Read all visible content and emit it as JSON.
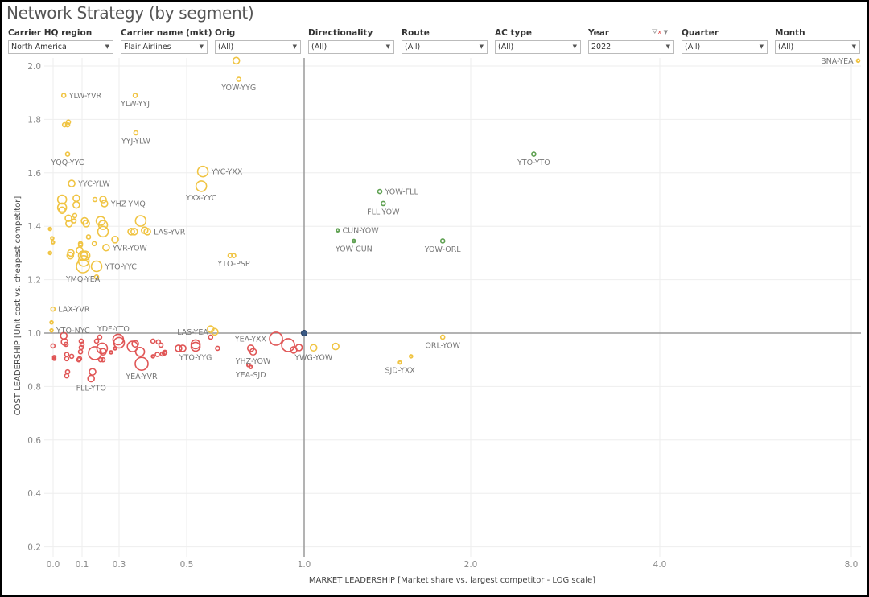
{
  "title": "Network Strategy (by segment)",
  "filters": [
    {
      "label": "Carrier HQ region",
      "value": "North America"
    },
    {
      "label": "Carrier name (mkt)",
      "value": "Flair Airlines"
    },
    {
      "label": "Orig",
      "value": "(All)"
    },
    {
      "label": "Directionality",
      "value": "(All)"
    },
    {
      "label": "Route",
      "value": "(All)"
    },
    {
      "label": "AC type",
      "value": "(All)"
    },
    {
      "label": "Year",
      "value": "2022"
    },
    {
      "label": "Quarter",
      "value": "(All)"
    },
    {
      "label": "Month",
      "value": "(All)"
    }
  ],
  "icons": {
    "clear_filter": "filter-clear-icon",
    "dropdown": "caret-down-icon"
  },
  "chart_data": {
    "type": "scatter",
    "xlabel": "MARKET LEADERSHIP [Market share vs. largest competitor - LOG scale]",
    "ylabel": "COST LEADERSHIP [Unit cost vs. cheapest competitor]",
    "x_scale": "log",
    "x_ticks": [
      {
        "value": 0.03125,
        "label": "0.0"
      },
      {
        "value": 0.125,
        "label": "0.1"
      },
      {
        "value": 0.25,
        "label": "0.3"
      },
      {
        "value": 0.5,
        "label": "0.5"
      },
      {
        "value": 1,
        "label": "1.0"
      },
      {
        "value": 2,
        "label": "2.0"
      },
      {
        "value": 4,
        "label": "4.0"
      },
      {
        "value": 8,
        "label": "8.0"
      }
    ],
    "y_ticks": [
      "0.2",
      "0.4",
      "0.6",
      "0.8",
      "1.0",
      "1.2",
      "1.4",
      "1.6",
      "1.8",
      "2.0"
    ],
    "ylim": [
      0.2,
      2.0
    ],
    "grid": true,
    "reference_lines": {
      "x": 1.0,
      "y": 1.0
    },
    "reference_point": {
      "x": 1.0,
      "y": 1.0,
      "color": "#3b5a85"
    },
    "point_format": [
      "x",
      "y",
      "bubble_size_1to5",
      "label"
    ],
    "series": [
      {
        "color": "#f0c443",
        "points": [
          [
            0.67,
            2.02,
            2,
            ""
          ],
          [
            0.68,
            1.95,
            1,
            "YOW-YYG"
          ],
          [
            0.052,
            1.89,
            1,
            "YLW-YVR"
          ],
          [
            0.295,
            1.89,
            1,
            "YLW-YYJ"
          ],
          [
            0.054,
            1.78,
            1,
            ""
          ],
          [
            0.065,
            1.79,
            1,
            ""
          ],
          [
            0.0625,
            1.78,
            1,
            ""
          ],
          [
            0.297,
            1.75,
            1,
            "YYJ-YLW"
          ],
          [
            0.0625,
            1.67,
            1,
            "YQQ-YYC"
          ],
          [
            0.55,
            1.605,
            4,
            "YYC-YXX"
          ],
          [
            0.545,
            1.55,
            4,
            "YXX-YYC"
          ],
          [
            0.076,
            1.56,
            2,
            "YYC-YLW"
          ],
          [
            0.048,
            1.5,
            3,
            ""
          ],
          [
            0.048,
            1.47,
            3,
            ""
          ],
          [
            0.095,
            1.505,
            2,
            ""
          ],
          [
            0.095,
            1.48,
            2,
            ""
          ],
          [
            0.159,
            1.5,
            1,
            ""
          ],
          [
            0.185,
            1.5,
            2,
            ""
          ],
          [
            0.19,
            1.485,
            2,
            "YHZ-YMQ"
          ],
          [
            0.048,
            1.46,
            2,
            ""
          ],
          [
            0.065,
            1.43,
            2,
            ""
          ],
          [
            0.067,
            1.41,
            2,
            ""
          ],
          [
            0.088,
            1.44,
            1,
            ""
          ],
          [
            0.085,
            1.42,
            1,
            ""
          ],
          [
            0.131,
            1.42,
            2,
            ""
          ],
          [
            0.135,
            1.41,
            2,
            ""
          ],
          [
            0.177,
            1.42,
            3,
            ""
          ],
          [
            0.185,
            1.405,
            3,
            ""
          ],
          [
            0.185,
            1.38,
            4,
            ""
          ],
          [
            0.312,
            1.42,
            4,
            ""
          ],
          [
            0.283,
            1.38,
            2,
            ""
          ],
          [
            0.292,
            1.38,
            2,
            ""
          ],
          [
            0.325,
            1.385,
            2,
            ""
          ],
          [
            0.334,
            1.38,
            2,
            "LAS-YVR"
          ],
          [
            0.027,
            1.39,
            0,
            ""
          ],
          [
            0.03,
            1.355,
            0,
            ""
          ],
          [
            0.031,
            1.34,
            0,
            ""
          ],
          [
            0.027,
            1.3,
            0,
            ""
          ],
          [
            0.141,
            1.36,
            1,
            ""
          ],
          [
            0.157,
            1.335,
            1,
            ""
          ],
          [
            0.232,
            1.35,
            2,
            ""
          ],
          [
            0.196,
            1.32,
            2,
            "YVR-YOW"
          ],
          [
            0.116,
            1.335,
            1,
            ""
          ],
          [
            0.116,
            1.33,
            1,
            ""
          ],
          [
            0.073,
            1.3,
            2,
            ""
          ],
          [
            0.071,
            1.29,
            2,
            ""
          ],
          [
            0.111,
            1.31,
            2,
            ""
          ],
          [
            0.127,
            1.29,
            3,
            ""
          ],
          [
            0.133,
            1.29,
            3,
            ""
          ],
          [
            0.129,
            1.27,
            4,
            ""
          ],
          [
            0.127,
            1.25,
            5,
            "YMQ-YEA"
          ],
          [
            0.164,
            1.25,
            4,
            "YTO-YYC"
          ],
          [
            0.164,
            1.21,
            1,
            ""
          ],
          [
            0.646,
            1.29,
            1,
            ""
          ],
          [
            0.66,
            1.29,
            1,
            "YTO-PSP"
          ],
          [
            0.031,
            1.09,
            1,
            "LAX-YVR"
          ],
          [
            0.029,
            1.04,
            0,
            ""
          ],
          [
            0.029,
            1.01,
            0,
            "YTO-NYC"
          ],
          [
            0.576,
            1.015,
            2,
            ""
          ],
          [
            0.59,
            1.005,
            2,
            "LAS-YEA"
          ],
          [
            1.04,
            0.945,
            2,
            "YWG-YOW"
          ],
          [
            1.14,
            0.95,
            2,
            ""
          ],
          [
            1.78,
            0.985,
            1,
            "ORL-YOW"
          ],
          [
            1.56,
            0.913,
            0,
            ""
          ],
          [
            1.49,
            0.89,
            0,
            "SJD-YXX"
          ],
          [
            8.2,
            2.02,
            0,
            "BNA-YEA"
          ]
        ]
      },
      {
        "color": "#e05656",
        "points": [
          [
            0.052,
            0.99,
            2,
            ""
          ],
          [
            0.054,
            0.967,
            2,
            ""
          ],
          [
            0.058,
            0.958,
            1,
            ""
          ],
          [
            0.031,
            0.952,
            1,
            ""
          ],
          [
            0.033,
            0.91,
            0,
            ""
          ],
          [
            0.033,
            0.904,
            0,
            ""
          ],
          [
            0.06,
            0.92,
            1,
            ""
          ],
          [
            0.06,
            0.904,
            1,
            ""
          ],
          [
            0.076,
            0.913,
            1,
            ""
          ],
          [
            0.0625,
            0.855,
            1,
            ""
          ],
          [
            0.06,
            0.84,
            1,
            ""
          ],
          [
            0.12,
            0.97,
            1,
            ""
          ],
          [
            0.125,
            0.958,
            1,
            ""
          ],
          [
            0.12,
            0.946,
            1,
            ""
          ],
          [
            0.116,
            0.93,
            1,
            ""
          ],
          [
            0.111,
            0.904,
            1,
            ""
          ],
          [
            0.107,
            0.9,
            1,
            ""
          ],
          [
            0.164,
            0.97,
            1,
            ""
          ],
          [
            0.174,
            0.985,
            1,
            ""
          ],
          [
            0.159,
            0.925,
            5,
            ""
          ],
          [
            0.182,
            0.943,
            4,
            ""
          ],
          [
            0.185,
            0.93,
            2,
            ""
          ],
          [
            0.177,
            0.9,
            1,
            ""
          ],
          [
            0.185,
            0.9,
            1,
            ""
          ],
          [
            0.152,
            0.855,
            2,
            ""
          ],
          [
            0.148,
            0.83,
            2,
            "FLL-YTO"
          ],
          [
            0.215,
            0.928,
            0,
            ""
          ],
          [
            0.246,
            0.976,
            4,
            "YDF-YTO"
          ],
          [
            0.25,
            0.964,
            4,
            ""
          ],
          [
            0.232,
            0.943,
            0,
            ""
          ],
          [
            0.287,
            0.95,
            4,
            ""
          ],
          [
            0.295,
            0.96,
            2,
            ""
          ],
          [
            0.31,
            0.93,
            3,
            ""
          ],
          [
            0.315,
            0.885,
            5,
            "YEA-YVR"
          ],
          [
            0.354,
            0.97,
            1,
            ""
          ],
          [
            0.374,
            0.967,
            1,
            ""
          ],
          [
            0.384,
            0.955,
            1,
            ""
          ],
          [
            0.354,
            0.913,
            0,
            ""
          ],
          [
            0.37,
            0.92,
            1,
            ""
          ],
          [
            0.39,
            0.922,
            1,
            ""
          ],
          [
            0.397,
            0.925,
            1,
            ""
          ],
          [
            0.4,
            0.928,
            1,
            ""
          ],
          [
            0.46,
            0.943,
            2,
            ""
          ],
          [
            0.48,
            0.943,
            2,
            ""
          ],
          [
            0.527,
            0.958,
            3,
            ""
          ],
          [
            0.527,
            0.949,
            3,
            "YTO-YYG"
          ],
          [
            0.576,
            0.985,
            1,
            ""
          ],
          [
            0.6,
            0.943,
            1,
            ""
          ],
          [
            0.73,
            0.943,
            2,
            ""
          ],
          [
            0.74,
            0.93,
            2,
            "YHZ-YOW"
          ],
          [
            0.72,
            0.88,
            0,
            ""
          ],
          [
            0.73,
            0.873,
            0,
            "YEA-SJD"
          ],
          [
            0.847,
            0.979,
            5,
            "YEA-YXX"
          ],
          [
            0.91,
            0.955,
            5,
            ""
          ],
          [
            0.94,
            0.937,
            2,
            ""
          ],
          [
            0.97,
            0.946,
            2,
            ""
          ]
        ]
      },
      {
        "color": "#5fa152",
        "points": [
          [
            2.52,
            1.67,
            1,
            "YTO-YTO"
          ],
          [
            1.37,
            1.53,
            1,
            "YOW-FLL"
          ],
          [
            1.39,
            1.485,
            1,
            "FLL-YOW"
          ],
          [
            1.15,
            1.385,
            0,
            "CUN-YOW"
          ],
          [
            1.23,
            1.345,
            0,
            "YOW-CUN"
          ],
          [
            1.78,
            1.345,
            1,
            "YOW-ORL"
          ]
        ]
      }
    ]
  }
}
